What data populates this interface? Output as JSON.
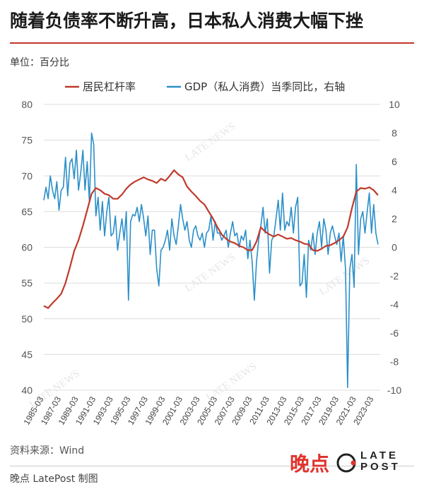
{
  "header": {
    "title": "随着负债率不断升高，日本私人消费大幅下挫",
    "unit": "单位：百分比"
  },
  "footer": {
    "source": "资料来源：Wind",
    "credit": "晚点 LatePost 制图",
    "brand_cn": "晚点",
    "brand_en_1": "LATE",
    "brand_en_2": "POST"
  },
  "colors": {
    "household_leverage": "#c0392b",
    "gdp_consumption": "#2b8fc9",
    "grid": "#dcdcdc",
    "title_rule": "#c0392b"
  },
  "chart_data": {
    "type": "line",
    "title": "随着负债率不断升高，日本私人消费大幅下挫",
    "left_axis": {
      "ylim": [
        40,
        80
      ],
      "ticks": [
        40,
        45,
        50,
        55,
        60,
        65,
        70,
        75,
        80
      ]
    },
    "right_axis": {
      "ylim": [
        -10,
        10
      ],
      "ticks": [
        -10,
        -8,
        -6,
        -4,
        -2,
        0,
        2,
        4,
        6,
        8,
        10
      ]
    },
    "x_ticks": [
      "1985-03",
      "1987-03",
      "1989-03",
      "1991-03",
      "1993-03",
      "1995-03",
      "1997-03",
      "1999-03",
      "2001-03",
      "2003-03",
      "2005-03",
      "2007-03",
      "2009-03",
      "2011-03",
      "2013-03",
      "2015-03",
      "2017-03",
      "2019-03",
      "2021-03",
      "2023-03"
    ],
    "x_start": 1985.0,
    "x_end": 2023.75,
    "grid": true,
    "legend_position": "top",
    "series": [
      {
        "name": "居民杠杆率",
        "axis": "left",
        "color": "#c0392b",
        "points": [
          [
            1985.0,
            51.8
          ],
          [
            1985.5,
            51.5
          ],
          [
            1986.0,
            52.2
          ],
          [
            1986.5,
            52.8
          ],
          [
            1987.0,
            53.5
          ],
          [
            1987.5,
            55.0
          ],
          [
            1988.0,
            57.2
          ],
          [
            1988.5,
            59.5
          ],
          [
            1989.0,
            61.0
          ],
          [
            1989.5,
            63.0
          ],
          [
            1990.0,
            65.2
          ],
          [
            1990.5,
            67.5
          ],
          [
            1991.0,
            68.3
          ],
          [
            1991.5,
            68.0
          ],
          [
            1992.0,
            67.5
          ],
          [
            1992.5,
            67.3
          ],
          [
            1993.0,
            66.8
          ],
          [
            1993.5,
            66.8
          ],
          [
            1994.0,
            67.4
          ],
          [
            1994.5,
            68.2
          ],
          [
            1995.0,
            68.8
          ],
          [
            1995.5,
            69.2
          ],
          [
            1996.0,
            69.5
          ],
          [
            1996.5,
            69.8
          ],
          [
            1997.0,
            69.5
          ],
          [
            1997.5,
            69.3
          ],
          [
            1998.0,
            69.0
          ],
          [
            1998.5,
            69.6
          ],
          [
            1999.0,
            69.3
          ],
          [
            1999.5,
            70.0
          ],
          [
            2000.0,
            70.8
          ],
          [
            2000.5,
            70.2
          ],
          [
            2001.0,
            69.8
          ],
          [
            2001.5,
            68.5
          ],
          [
            2002.0,
            67.8
          ],
          [
            2002.5,
            67.2
          ],
          [
            2003.0,
            66.5
          ],
          [
            2003.5,
            66.0
          ],
          [
            2004.0,
            65.0
          ],
          [
            2004.5,
            64.0
          ],
          [
            2005.0,
            62.8
          ],
          [
            2005.5,
            61.8
          ],
          [
            2006.0,
            61.2
          ],
          [
            2006.5,
            60.8
          ],
          [
            2007.0,
            60.6
          ],
          [
            2007.5,
            60.2
          ],
          [
            2008.0,
            60.0
          ],
          [
            2008.5,
            59.6
          ],
          [
            2009.0,
            59.6
          ],
          [
            2009.5,
            60.8
          ],
          [
            2010.0,
            62.8
          ],
          [
            2010.5,
            62.2
          ],
          [
            2011.0,
            61.8
          ],
          [
            2011.5,
            61.5
          ],
          [
            2012.0,
            61.8
          ],
          [
            2012.5,
            61.5
          ],
          [
            2013.0,
            61.2
          ],
          [
            2013.5,
            61.3
          ],
          [
            2014.0,
            61.0
          ],
          [
            2014.5,
            60.8
          ],
          [
            2015.0,
            60.5
          ],
          [
            2015.5,
            60.4
          ],
          [
            2016.0,
            59.6
          ],
          [
            2016.5,
            59.5
          ],
          [
            2017.0,
            59.8
          ],
          [
            2017.5,
            60.2
          ],
          [
            2018.0,
            60.3
          ],
          [
            2018.5,
            60.6
          ],
          [
            2019.0,
            61.0
          ],
          [
            2019.5,
            61.5
          ],
          [
            2020.0,
            62.8
          ],
          [
            2020.5,
            65.5
          ],
          [
            2021.0,
            67.8
          ],
          [
            2021.5,
            68.3
          ],
          [
            2022.0,
            68.2
          ],
          [
            2022.5,
            68.4
          ],
          [
            2023.0,
            68.0
          ],
          [
            2023.5,
            67.3
          ]
        ]
      },
      {
        "name": "GDP（私人消费）当季同比，右轴",
        "axis": "right",
        "color": "#2b8fc9",
        "points": [
          [
            1985.0,
            3.3
          ],
          [
            1985.25,
            4.2
          ],
          [
            1985.5,
            3.4
          ],
          [
            1985.75,
            5.0
          ],
          [
            1986.0,
            4.0
          ],
          [
            1986.25,
            3.4
          ],
          [
            1986.5,
            4.6
          ],
          [
            1986.75,
            2.6
          ],
          [
            1987.0,
            4.0
          ],
          [
            1987.25,
            4.2
          ],
          [
            1987.5,
            6.3
          ],
          [
            1987.75,
            3.6
          ],
          [
            1988.0,
            5.9
          ],
          [
            1988.25,
            6.2
          ],
          [
            1988.5,
            4.8
          ],
          [
            1988.75,
            6.8
          ],
          [
            1989.0,
            4.0
          ],
          [
            1989.25,
            5.2
          ],
          [
            1989.5,
            6.8
          ],
          [
            1989.75,
            4.0
          ],
          [
            1990.0,
            6.0
          ],
          [
            1990.25,
            3.2
          ],
          [
            1990.5,
            8.0
          ],
          [
            1990.75,
            7.2
          ],
          [
            1991.0,
            2.2
          ],
          [
            1991.25,
            3.5
          ],
          [
            1991.5,
            1.2
          ],
          [
            1991.75,
            3.2
          ],
          [
            1992.0,
            0.8
          ],
          [
            1992.25,
            2.5
          ],
          [
            1992.5,
            3.5
          ],
          [
            1992.75,
            0.8
          ],
          [
            1993.0,
            1.0
          ],
          [
            1993.25,
            2.2
          ],
          [
            1993.5,
            -0.2
          ],
          [
            1993.75,
            1.0
          ],
          [
            1994.0,
            2.0
          ],
          [
            1994.25,
            0.5
          ],
          [
            1994.5,
            2.5
          ],
          [
            1994.75,
            -3.7
          ],
          [
            1995.0,
            1.8
          ],
          [
            1995.25,
            2.3
          ],
          [
            1995.5,
            2.2
          ],
          [
            1995.75,
            2.8
          ],
          [
            1996.0,
            1.8
          ],
          [
            1996.25,
            3.0
          ],
          [
            1996.5,
            2.0
          ],
          [
            1996.75,
            0.8
          ],
          [
            1997.0,
            2.2
          ],
          [
            1997.25,
            -0.5
          ],
          [
            1997.5,
            1.2
          ],
          [
            1997.75,
            1.2
          ],
          [
            1998.0,
            -1.5
          ],
          [
            1998.25,
            -2.7
          ],
          [
            1998.5,
            -0.2
          ],
          [
            1998.75,
            0.0
          ],
          [
            1999.0,
            0.5
          ],
          [
            1999.25,
            1.2
          ],
          [
            1999.5,
            -0.2
          ],
          [
            1999.75,
            2.0
          ],
          [
            2000.0,
            0.8
          ],
          [
            2000.25,
            0.2
          ],
          [
            2000.5,
            1.5
          ],
          [
            2000.75,
            3.0
          ],
          [
            2001.0,
            2.0
          ],
          [
            2001.25,
            1.2
          ],
          [
            2001.5,
            1.8
          ],
          [
            2001.75,
            0.5
          ],
          [
            2002.0,
            0.0
          ],
          [
            2002.25,
            1.2
          ],
          [
            2002.5,
            1.5
          ],
          [
            2002.75,
            0.8
          ],
          [
            2003.0,
            0.5
          ],
          [
            2003.25,
            1.0
          ],
          [
            2003.5,
            0.0
          ],
          [
            2003.75,
            1.0
          ],
          [
            2004.0,
            1.2
          ],
          [
            2004.25,
            2.2
          ],
          [
            2004.5,
            0.5
          ],
          [
            2004.75,
            1.8
          ],
          [
            2005.0,
            1.0
          ],
          [
            2005.25,
            1.0
          ],
          [
            2005.5,
            0.5
          ],
          [
            2005.75,
            0.8
          ],
          [
            2006.0,
            1.2
          ],
          [
            2006.25,
            0.0
          ],
          [
            2006.5,
            1.0
          ],
          [
            2006.75,
            1.8
          ],
          [
            2007.0,
            0.8
          ],
          [
            2007.25,
            1.0
          ],
          [
            2007.5,
            0.0
          ],
          [
            2007.75,
            0.8
          ],
          [
            2008.0,
            0.5
          ],
          [
            2008.25,
            1.2
          ],
          [
            2008.5,
            -0.8
          ],
          [
            2008.75,
            0.5
          ],
          [
            2009.0,
            -1.0
          ],
          [
            2009.25,
            -3.7
          ],
          [
            2009.5,
            -1.0
          ],
          [
            2009.75,
            0.5
          ],
          [
            2010.0,
            1.5
          ],
          [
            2010.25,
            2.8
          ],
          [
            2010.5,
            1.0
          ],
          [
            2010.75,
            2.0
          ],
          [
            2011.0,
            -1.8
          ],
          [
            2011.25,
            0.5
          ],
          [
            2011.5,
            0.8
          ],
          [
            2011.75,
            2.0
          ],
          [
            2012.0,
            3.3
          ],
          [
            2012.25,
            1.2
          ],
          [
            2012.5,
            3.8
          ],
          [
            2012.75,
            1.2
          ],
          [
            2013.0,
            1.8
          ],
          [
            2013.25,
            1.5
          ],
          [
            2013.5,
            2.8
          ],
          [
            2013.75,
            1.0
          ],
          [
            2014.0,
            2.8
          ],
          [
            2014.25,
            3.5
          ],
          [
            2014.5,
            -2.7
          ],
          [
            2014.75,
            -2.5
          ],
          [
            2015.0,
            -0.5
          ],
          [
            2015.25,
            -3.5
          ],
          [
            2015.5,
            0.5
          ],
          [
            2015.75,
            -0.2
          ],
          [
            2016.0,
            1.0
          ],
          [
            2016.25,
            -0.5
          ],
          [
            2016.5,
            1.0
          ],
          [
            2016.75,
            1.8
          ],
          [
            2017.0,
            0.0
          ],
          [
            2017.25,
            2.0
          ],
          [
            2017.5,
            1.2
          ],
          [
            2017.75,
            -0.5
          ],
          [
            2018.0,
            1.0
          ],
          [
            2018.25,
            1.5
          ],
          [
            2018.5,
            0.8
          ],
          [
            2018.75,
            0.2
          ],
          [
            2019.0,
            1.0
          ],
          [
            2019.25,
            -1.0
          ],
          [
            2019.5,
            0.8
          ],
          [
            2019.75,
            -1.5
          ],
          [
            2020.0,
            -9.8
          ],
          [
            2020.25,
            -1.5
          ],
          [
            2020.5,
            -0.5
          ],
          [
            2020.75,
            -2.8
          ],
          [
            2021.0,
            5.8
          ],
          [
            2021.25,
            -0.5
          ],
          [
            2021.5,
            2.0
          ],
          [
            2021.75,
            2.5
          ],
          [
            2022.0,
            1.0
          ],
          [
            2022.25,
            2.5
          ],
          [
            2022.5,
            3.8
          ],
          [
            2022.75,
            1.0
          ],
          [
            2023.0,
            3.0
          ],
          [
            2023.25,
            1.0
          ],
          [
            2023.5,
            0.2
          ]
        ]
      }
    ]
  }
}
